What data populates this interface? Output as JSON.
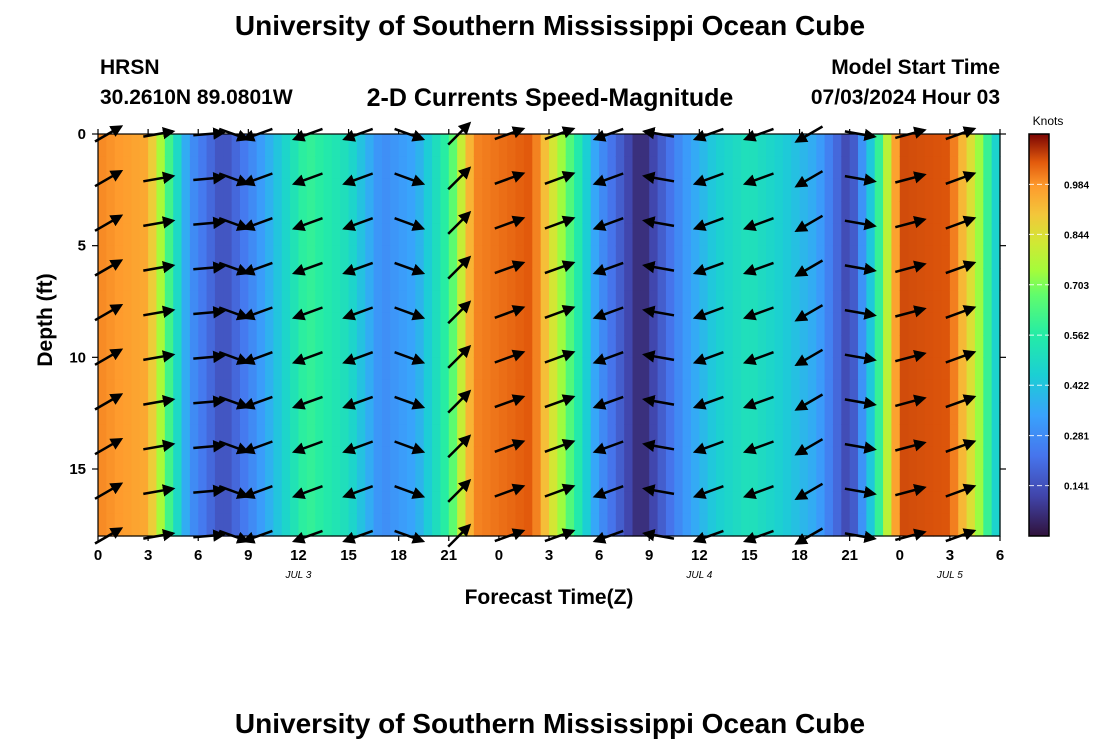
{
  "header": {
    "title": "University of Southern Mississippi Ocean Cube",
    "station": "HRSN",
    "coords": "30.2610N  89.0801W",
    "subtitle": "2-D Currents Speed-Magnitude",
    "model_label": "Model Start Time",
    "model_time": "07/03/2024 Hour 03",
    "footer_title": "University of Southern Mississippi Ocean Cube"
  },
  "chart_data": {
    "type": "heatmap",
    "title": "2-D Currents Speed-Magnitude",
    "xlabel": "Forecast Time(Z)",
    "ylabel": "Depth (ft)",
    "x_range_hours": [
      0,
      54
    ],
    "x_ticks": [
      {
        "h": 0,
        "label": "0"
      },
      {
        "h": 3,
        "label": "3"
      },
      {
        "h": 6,
        "label": "6"
      },
      {
        "h": 9,
        "label": "9"
      },
      {
        "h": 12,
        "label": "12"
      },
      {
        "h": 15,
        "label": "15"
      },
      {
        "h": 18,
        "label": "18"
      },
      {
        "h": 21,
        "label": "21"
      },
      {
        "h": 24,
        "label": "0"
      },
      {
        "h": 27,
        "label": "3"
      },
      {
        "h": 30,
        "label": "6"
      },
      {
        "h": 33,
        "label": "9"
      },
      {
        "h": 36,
        "label": "12"
      },
      {
        "h": 39,
        "label": "15"
      },
      {
        "h": 42,
        "label": "18"
      },
      {
        "h": 45,
        "label": "21"
      },
      {
        "h": 48,
        "label": "0"
      },
      {
        "h": 51,
        "label": "3"
      },
      {
        "h": 54,
        "label": "6"
      }
    ],
    "date_labels": [
      {
        "h": 12,
        "label": "JUL 3"
      },
      {
        "h": 36,
        "label": "JUL 4"
      },
      {
        "h": 51,
        "label": "JUL 5"
      }
    ],
    "y_range_ft": [
      0,
      18
    ],
    "y_ticks": [
      0,
      5,
      10,
      15
    ],
    "colorbar": {
      "unit": "Knots",
      "range": [
        0.0,
        1.125
      ],
      "tick_values": [
        0.141,
        0.281,
        0.422,
        0.562,
        0.703,
        0.844,
        0.984
      ],
      "tick_labels": [
        "0.141",
        "0.281",
        "0.422",
        "0.562",
        "0.703",
        "0.844",
        "0.984"
      ]
    },
    "speed_keyframes": [
      {
        "h": 0,
        "s": 1.0
      },
      {
        "h": 3,
        "s": 0.95
      },
      {
        "h": 4.5,
        "s": 0.55
      },
      {
        "h": 5.5,
        "s": 0.3
      },
      {
        "h": 7.5,
        "s": 0.13
      },
      {
        "h": 9.5,
        "s": 0.3
      },
      {
        "h": 12.5,
        "s": 0.6
      },
      {
        "h": 15,
        "s": 0.5
      },
      {
        "h": 17,
        "s": 0.28
      },
      {
        "h": 19,
        "s": 0.35
      },
      {
        "h": 21,
        "s": 0.6
      },
      {
        "h": 22.5,
        "s": 1.0
      },
      {
        "h": 26,
        "s": 1.05
      },
      {
        "h": 28.5,
        "s": 0.6
      },
      {
        "h": 30,
        "s": 0.3
      },
      {
        "h": 32.5,
        "s": 0.04
      },
      {
        "h": 35,
        "s": 0.3
      },
      {
        "h": 37,
        "s": 0.45
      },
      {
        "h": 39,
        "s": 0.52
      },
      {
        "h": 41,
        "s": 0.45
      },
      {
        "h": 43,
        "s": 0.35
      },
      {
        "h": 45,
        "s": 0.1
      },
      {
        "h": 46.5,
        "s": 0.5
      },
      {
        "h": 48,
        "s": 1.06
      },
      {
        "h": 51,
        "s": 1.05
      },
      {
        "h": 52.5,
        "s": 0.8
      },
      {
        "h": 54,
        "s": 0.4
      }
    ],
    "arrow_depths_ft": [
      0,
      2,
      4,
      6,
      8,
      10,
      12,
      14,
      16,
      18
    ],
    "arrow_columns": [
      {
        "h": 0,
        "deg": 30
      },
      {
        "h": 3,
        "deg": 10
      },
      {
        "h": 6,
        "deg": 5
      },
      {
        "h": 7.5,
        "deg": -20
      },
      {
        "h": 9,
        "deg": 200
      },
      {
        "h": 12,
        "deg": 200
      },
      {
        "h": 15,
        "deg": 200
      },
      {
        "h": 18,
        "deg": 340
      },
      {
        "h": 21,
        "deg": 45
      },
      {
        "h": 24,
        "deg": 20
      },
      {
        "h": 27,
        "deg": 20
      },
      {
        "h": 30,
        "deg": 200
      },
      {
        "h": 33,
        "deg": 170
      },
      {
        "h": 36,
        "deg": 200
      },
      {
        "h": 39,
        "deg": 200
      },
      {
        "h": 42,
        "deg": 210
      },
      {
        "h": 45,
        "deg": -10
      },
      {
        "h": 48,
        "deg": 15
      },
      {
        "h": 51,
        "deg": 20
      }
    ]
  }
}
